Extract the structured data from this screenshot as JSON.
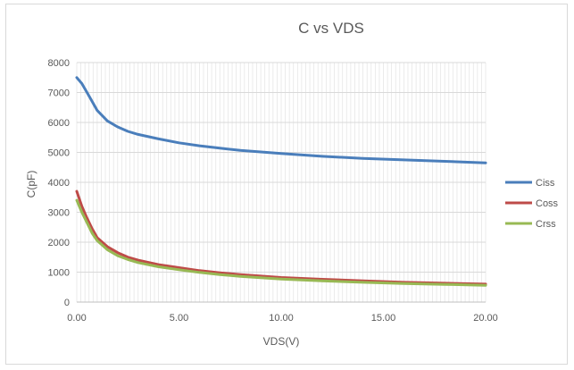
{
  "chart_data": {
    "type": "line",
    "title": "C vs VDS",
    "xlabel": "VDS(V)",
    "ylabel": "C(pF)",
    "xlim": [
      0,
      20
    ],
    "ylim": [
      0,
      8000
    ],
    "x_ticks": [
      "0.00",
      "5.00",
      "10.00",
      "15.00",
      "20.00"
    ],
    "y_ticks": [
      "0",
      "1000",
      "2000",
      "3000",
      "4000",
      "5000",
      "6000",
      "7000",
      "8000"
    ],
    "grid": "vertical and horizontal gridlines",
    "legend_position": "right",
    "series": [
      {
        "name": "Ciss",
        "color": "#4a7ebb",
        "x": [
          0.0,
          0.25,
          0.5,
          0.75,
          1.0,
          1.5,
          2.0,
          2.5,
          3.0,
          4.0,
          5.0,
          6.0,
          7.0,
          8.0,
          10.0,
          12.0,
          14.0,
          16.0,
          18.0,
          20.0
        ],
        "y": [
          7500,
          7300,
          7000,
          6700,
          6400,
          6050,
          5850,
          5700,
          5600,
          5450,
          5320,
          5220,
          5140,
          5070,
          4960,
          4870,
          4800,
          4750,
          4700,
          4650
        ]
      },
      {
        "name": "Coss",
        "color": "#be4b48",
        "x": [
          0.0,
          0.25,
          0.5,
          0.75,
          1.0,
          1.5,
          2.0,
          2.5,
          3.0,
          4.0,
          5.0,
          6.0,
          7.0,
          8.0,
          10.0,
          12.0,
          14.0,
          16.0,
          18.0,
          20.0
        ],
        "y": [
          3700,
          3200,
          2800,
          2450,
          2150,
          1850,
          1650,
          1500,
          1400,
          1250,
          1150,
          1050,
          980,
          920,
          820,
          760,
          710,
          660,
          630,
          600
        ]
      },
      {
        "name": "Crss",
        "color": "#98b954",
        "x": [
          0.0,
          0.25,
          0.5,
          0.75,
          1.0,
          1.5,
          2.0,
          2.5,
          3.0,
          4.0,
          5.0,
          6.0,
          7.0,
          8.0,
          10.0,
          12.0,
          14.0,
          16.0,
          18.0,
          20.0
        ],
        "y": [
          3400,
          3000,
          2650,
          2300,
          2050,
          1750,
          1550,
          1420,
          1320,
          1180,
          1080,
          990,
          920,
          860,
          770,
          710,
          660,
          620,
          590,
          560
        ]
      }
    ]
  }
}
